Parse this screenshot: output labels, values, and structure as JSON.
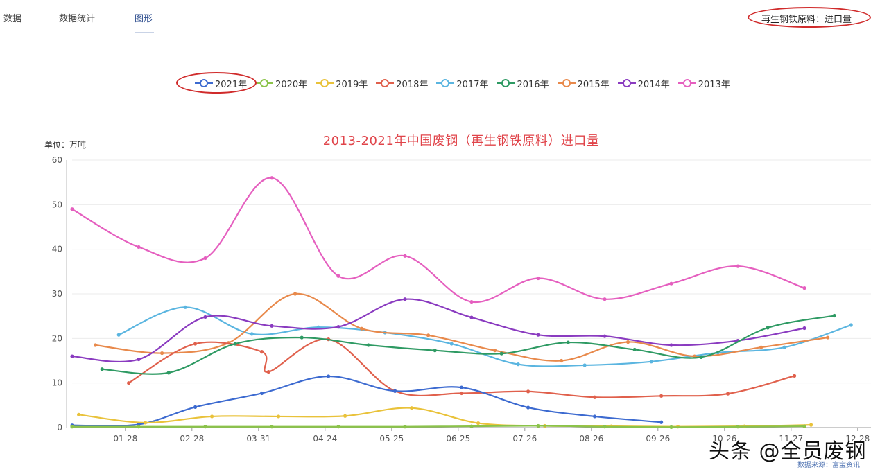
{
  "tabs": [
    {
      "label": "数据",
      "active": false
    },
    {
      "label": "数据统计",
      "active": false
    },
    {
      "label": "图形",
      "active": true
    }
  ],
  "category_label": "再生钢铁原料：进口量",
  "unit_label": "单位：万吨",
  "watermark": "头条 @全员废钢",
  "credit": "数据来源：富宝资讯",
  "chart_data": {
    "type": "line",
    "title": "2013-2021年中国废钢（再生钢铁原料）进口量",
    "ylabel": "单位：万吨",
    "xlabel": "",
    "ylim": [
      0,
      60
    ],
    "yticks": [
      0,
      10,
      20,
      30,
      40,
      50,
      60
    ],
    "xlim": [
      0,
      12
    ],
    "xticks": [
      {
        "x": 0.8,
        "label": "01-28"
      },
      {
        "x": 1.8,
        "label": "02-28"
      },
      {
        "x": 2.8,
        "label": "03-31"
      },
      {
        "x": 3.8,
        "label": "04-24"
      },
      {
        "x": 4.8,
        "label": "05-25"
      },
      {
        "x": 5.8,
        "label": "06-25"
      },
      {
        "x": 6.8,
        "label": "07-26"
      },
      {
        "x": 7.8,
        "label": "08-26"
      },
      {
        "x": 8.8,
        "label": "09-26"
      },
      {
        "x": 9.8,
        "label": "10-26"
      },
      {
        "x": 10.8,
        "label": "11-27"
      },
      {
        "x": 11.8,
        "label": "12-28"
      }
    ],
    "grid": true,
    "legend_position": "top",
    "series": [
      {
        "name": "2013年",
        "color": "#e55fbf",
        "x": [
          0,
          1,
          2,
          3,
          4,
          5,
          6,
          7,
          8,
          9,
          10,
          11
        ],
        "values": [
          49,
          40.5,
          38,
          56,
          34,
          38.5,
          28.2,
          33.5,
          28.8,
          32.3,
          36.2,
          31.3
        ]
      },
      {
        "name": "2017年",
        "color": "#5ab5e0",
        "x": [
          0.7,
          1.7,
          2.7,
          3.7,
          4.7,
          5.7,
          6.7,
          7.7,
          8.7,
          9.7,
          10.7,
          11.7
        ],
        "values": [
          20.8,
          27,
          21,
          22.5,
          21.3,
          18.8,
          14.2,
          14,
          14.8,
          16.8,
          18,
          23
        ]
      },
      {
        "name": "2015年",
        "color": "#e8894b",
        "x": [
          0.35,
          1.35,
          2.35,
          3.35,
          4.35,
          5.35,
          6.35,
          7.35,
          8.35,
          9.35,
          10.35,
          11.35
        ],
        "values": [
          18.5,
          16.7,
          19,
          30,
          22.2,
          20.7,
          17.3,
          15,
          19.2,
          16,
          18,
          20.2
        ]
      },
      {
        "name": "2018年",
        "color": "#e0604c",
        "x": [
          0.85,
          1.85,
          2.85,
          2.95,
          3.85,
          4.85,
          5.85,
          6.85,
          7.85,
          8.85,
          9.85,
          10.85
        ],
        "values": [
          10,
          18.8,
          17,
          12.5,
          19.8,
          8.2,
          7.7,
          8.1,
          6.8,
          7.1,
          7.6,
          11.6
        ]
      },
      {
        "name": "2014年",
        "color": "#8a3bc0",
        "x": [
          0,
          1,
          2,
          3,
          4,
          5,
          6,
          7,
          8,
          9,
          10,
          11
        ],
        "values": [
          16,
          15.3,
          24.8,
          22.8,
          22.6,
          28.8,
          24.7,
          20.8,
          20.5,
          18.5,
          19.5,
          22.3
        ]
      },
      {
        "name": "2016年",
        "color": "#2e9a63",
        "x": [
          0.45,
          1.45,
          2.45,
          3.45,
          4.45,
          5.45,
          6.45,
          7.45,
          8.45,
          9.45,
          10.45,
          11.45
        ],
        "values": [
          13.1,
          12.3,
          18.8,
          20.2,
          18.5,
          17.3,
          16.6,
          19.1,
          17.5,
          15.8,
          22.4,
          25.1
        ]
      },
      {
        "name": "2021年",
        "color": "#3c6ad0",
        "x": [
          0,
          1,
          1.85,
          2.85,
          3.85,
          4.85,
          5.85,
          6.85,
          7.85,
          8.85
        ],
        "values": [
          0.5,
          0.7,
          4.6,
          7.7,
          11.5,
          8.2,
          9,
          4.5,
          2.5,
          1.2
        ]
      },
      {
        "name": "2019年",
        "color": "#e9c23a",
        "x": [
          0.1,
          1.1,
          2.1,
          3.1,
          4.1,
          5.1,
          6.1,
          7.1,
          8.1,
          9.1,
          10.1,
          11.1
        ],
        "values": [
          2.9,
          1.1,
          2.5,
          2.5,
          2.6,
          4.4,
          1,
          0.4,
          0.3,
          0.2,
          0.3,
          0.6
        ]
      },
      {
        "name": "2020年",
        "color": "#8bc34a",
        "x": [
          0,
          1,
          2,
          3,
          4,
          5,
          6,
          7,
          8,
          9,
          10,
          11
        ],
        "values": [
          0.2,
          0.2,
          0.2,
          0.2,
          0.2,
          0.2,
          0.3,
          0.4,
          0.2,
          0.1,
          0.2,
          0.3
        ]
      }
    ],
    "legend_order": [
      "2021年",
      "2020年",
      "2019年",
      "2018年",
      "2017年",
      "2016年",
      "2015年",
      "2014年",
      "2013年"
    ]
  }
}
